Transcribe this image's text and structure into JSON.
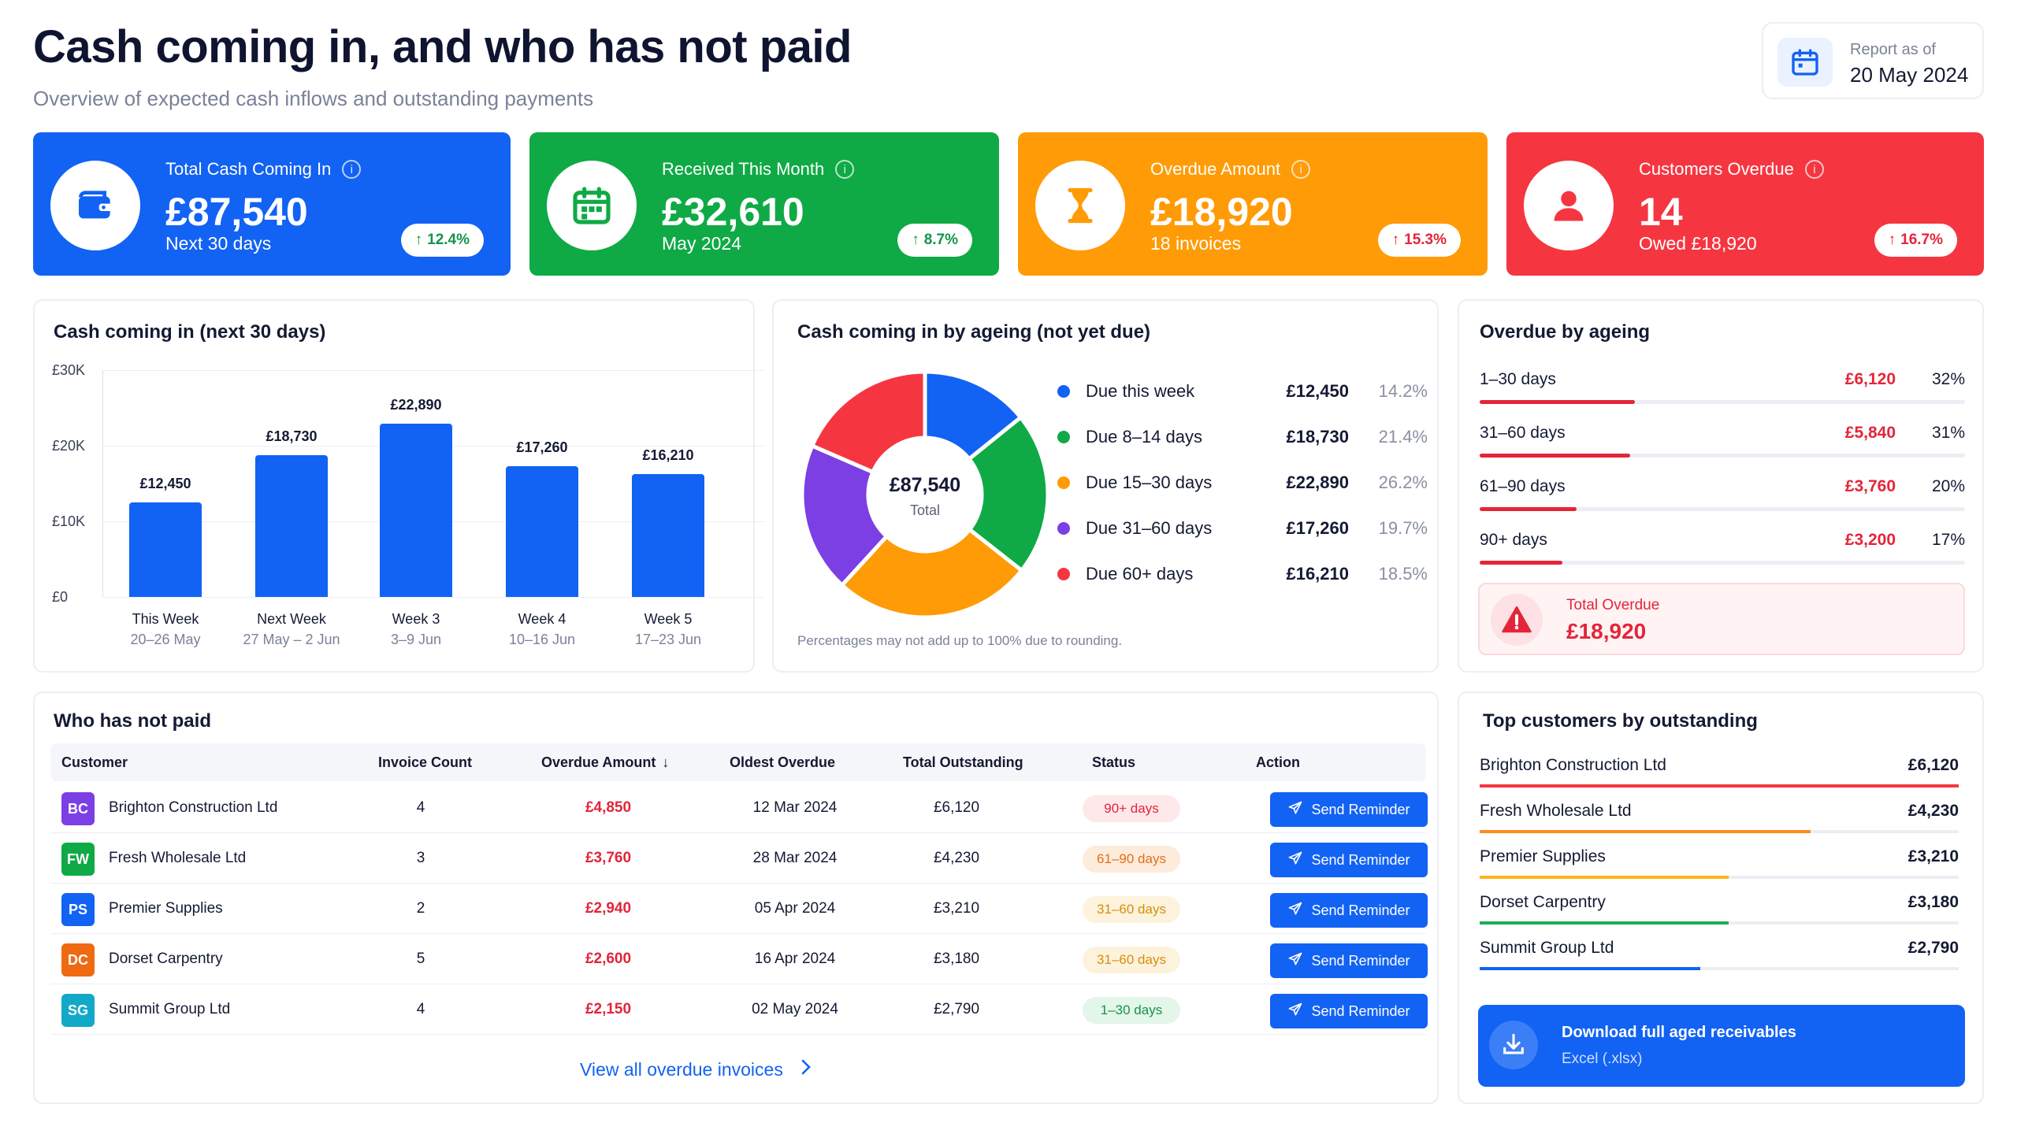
{
  "header": {
    "title": "Cash coming in, and who has not paid",
    "subtitle": "Overview of expected cash inflows and outstanding payments",
    "report_label": "Report as of",
    "report_date": "20 May 2024"
  },
  "kpis": [
    {
      "label": "Total Cash Coming In",
      "value": "£87,540",
      "sub": "Next 30 days",
      "change": "12.4%",
      "color": "#1262f4",
      "icon": "wallet-icon"
    },
    {
      "label": "Received This Month",
      "value": "£32,610",
      "sub": "May 2024",
      "change": "8.7%",
      "color": "#0faa45",
      "icon": "calendar-icon"
    },
    {
      "label": "Overdue Amount",
      "value": "£18,920",
      "sub": "18 invoices",
      "change": "15.3%",
      "color": "#ff9b06",
      "icon": "hourglass-icon"
    },
    {
      "label": "Customers Overdue",
      "value": "14",
      "sub": "Owed £18,920",
      "change": "16.7%",
      "color": "#f53641",
      "icon": "user-icon"
    }
  ],
  "cash_chart": {
    "title": "Cash coming in (next 30 days)",
    "chart_data": {
      "type": "bar",
      "title": "Cash coming in (next 30 days)",
      "categories": [
        "This Week",
        "Next Week",
        "Week 3",
        "Week 4",
        "Week 5"
      ],
      "category_sub": [
        "20–26 May",
        "27 May – 2 Jun",
        "3–9 Jun",
        "10–16 Jun",
        "17–23 Jun"
      ],
      "values": [
        12450,
        18730,
        22890,
        17260,
        16210
      ],
      "value_labels": [
        "£12,450",
        "£18,730",
        "£22,890",
        "£17,260",
        "£16,210"
      ],
      "yticks": [
        "£30K",
        "£20K",
        "£10K",
        "£0"
      ],
      "ylim": [
        0,
        30000
      ],
      "grid": true
    }
  },
  "ageing_donut": {
    "title": "Cash coming in by ageing (not yet due)",
    "center_value": "£87,540",
    "center_label": "Total",
    "note": "Percentages may not add up to 100% due to rounding.",
    "chart_data": {
      "type": "pie",
      "labels": [
        "Due this week",
        "Due 8–14 days",
        "Due 15–30 days",
        "Due 31–60 days",
        "Due 60+ days"
      ],
      "amounts": [
        "£12,450",
        "£18,730",
        "£22,890",
        "£17,260",
        "£16,210"
      ],
      "values": [
        14.2,
        21.4,
        26.2,
        19.7,
        18.5
      ],
      "percent_labels": [
        "14.2%",
        "21.4%",
        "26.2%",
        "19.7%",
        "18.5%"
      ],
      "colors": [
        "#1262f4",
        "#0faa45",
        "#ff9b06",
        "#7b3fe4",
        "#f53641"
      ]
    }
  },
  "overdue_ageing": {
    "title": "Overdue by ageing",
    "rows": [
      {
        "label": "1–30 days",
        "amount": "£6,120",
        "percent": "32%",
        "fraction": 0.32
      },
      {
        "label": "31–60 days",
        "amount": "£5,840",
        "percent": "31%",
        "fraction": 0.31
      },
      {
        "label": "61–90 days",
        "amount": "£3,760",
        "percent": "20%",
        "fraction": 0.2
      },
      {
        "label": "90+ days",
        "amount": "£3,200",
        "percent": "17%",
        "fraction": 0.17
      }
    ],
    "total_label": "Total Overdue",
    "total_value": "£18,920"
  },
  "unpaid": {
    "title": "Who has not paid",
    "columns": [
      "Customer",
      "Invoice Count",
      "Overdue Amount",
      "Oldest Overdue",
      "Total Outstanding",
      "Status",
      "Action"
    ],
    "rows": [
      {
        "initials": "BC",
        "avatar_color": "#7b3fe4",
        "customer": "Brighton Construction Ltd",
        "count": "4",
        "overdue": "£4,850",
        "oldest": "12 Mar 2024",
        "total": "£6,120",
        "status": "90+ days",
        "status_color": "#e3253a",
        "status_bg": "#fde8ea",
        "action": "Send Reminder"
      },
      {
        "initials": "FW",
        "avatar_color": "#0faa45",
        "customer": "Fresh Wholesale Ltd",
        "count": "3",
        "overdue": "£3,760",
        "oldest": "28 Mar 2024",
        "total": "£4,230",
        "status": "61–90 days",
        "status_color": "#e0701a",
        "status_bg": "#fdebdc",
        "action": "Send Reminder"
      },
      {
        "initials": "PS",
        "avatar_color": "#1262f4",
        "customer": "Premier Supplies",
        "count": "2",
        "overdue": "£2,940",
        "oldest": "05 Apr 2024",
        "total": "£3,210",
        "status": "31–60 days",
        "status_color": "#d6900a",
        "status_bg": "#fdf2dc",
        "action": "Send Reminder"
      },
      {
        "initials": "DC",
        "avatar_color": "#f06a12",
        "customer": "Dorset Carpentry",
        "count": "5",
        "overdue": "£2,600",
        "oldest": "16 Apr 2024",
        "total": "£3,180",
        "status": "31–60 days",
        "status_color": "#d6900a",
        "status_bg": "#fdf2dc",
        "action": "Send Reminder"
      },
      {
        "initials": "SG",
        "avatar_color": "#12a9c8",
        "customer": "Summit Group Ltd",
        "count": "4",
        "overdue": "£2,150",
        "oldest": "02 May 2024",
        "total": "£2,790",
        "status": "1–30 days",
        "status_color": "#14944a",
        "status_bg": "#e4f5ea",
        "action": "Send Reminder"
      }
    ],
    "view_all": "View all overdue invoices"
  },
  "top_customers": {
    "title": "Top customers by outstanding",
    "rows": [
      {
        "name": "Brighton Construction Ltd",
        "amount": "£6,120",
        "fraction": 1.0,
        "color": "#f53641"
      },
      {
        "name": "Fresh Wholesale Ltd",
        "amount": "£4,230",
        "fraction": 0.69,
        "color": "#ff8a1f"
      },
      {
        "name": "Premier Supplies",
        "amount": "£3,210",
        "fraction": 0.52,
        "color": "#ffb21e"
      },
      {
        "name": "Dorset Carpentry",
        "amount": "£3,180",
        "fraction": 0.52,
        "color": "#1dae55"
      },
      {
        "name": "Summit Group Ltd",
        "amount": "£2,790",
        "fraction": 0.46,
        "color": "#1262f4"
      }
    ],
    "download_title": "Download full aged receivables",
    "download_sub": "Excel (.xlsx)"
  }
}
